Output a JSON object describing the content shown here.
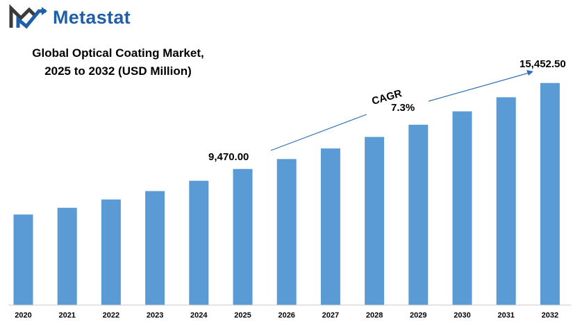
{
  "brand": {
    "name": "Metastat",
    "logo_icon": "metastat-logo-icon"
  },
  "title_lines": [
    "Global Optical Coating Market,",
    "2025 to 2032 (USD Million)"
  ],
  "colors": {
    "bar": "#5b9bd5",
    "brand": "#1f5fa8",
    "arrow": "#2e6fb5",
    "axis": "#c9c9c9"
  },
  "chart_data": {
    "type": "bar",
    "title": "Global Optical Coating Market, 2025 to 2032 (USD Million)",
    "categories": [
      "2020",
      "2021",
      "2022",
      "2023",
      "2024",
      "2025",
      "2026",
      "2027",
      "2028",
      "2029",
      "2030",
      "2031",
      "2032"
    ],
    "values": [
      6300,
      6770,
      7350,
      7930,
      8650,
      9470,
      10160,
      10900,
      11700,
      12550,
      13480,
      14460,
      15452.5
    ],
    "ylim": [
      0,
      16500
    ],
    "grid": false,
    "legend": "none",
    "annotations": {
      "start_label": "9,470.00",
      "end_label": "15,452.50",
      "cagr_label": "CAGR",
      "cagr_value": "7.3%"
    }
  }
}
